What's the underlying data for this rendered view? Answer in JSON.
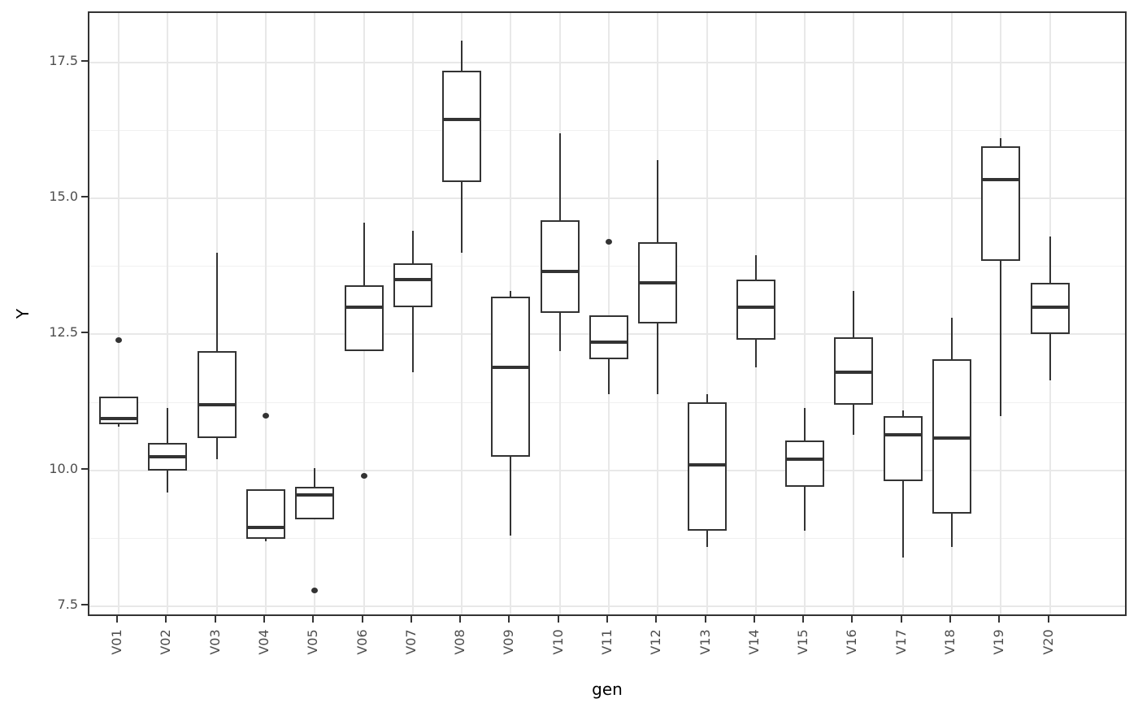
{
  "chart_data": {
    "type": "boxplot",
    "title": "",
    "xlabel": "gen",
    "ylabel": "Y",
    "categories": [
      "V01",
      "V02",
      "V03",
      "V04",
      "V05",
      "V06",
      "V07",
      "V08",
      "V09",
      "V10",
      "V11",
      "V12",
      "V13",
      "V14",
      "V15",
      "V16",
      "V17",
      "V18",
      "V19",
      "V20"
    ],
    "ylim": [
      7.3,
      18.4
    ],
    "yticks": [
      7.5,
      10.0,
      12.5,
      15.0,
      17.5
    ],
    "ytick_labels": [
      "7.5",
      "10.0",
      "12.5",
      "15.0",
      "17.5"
    ],
    "yticks_minor": [
      8.75,
      11.25,
      13.75,
      16.25
    ],
    "grid": "on",
    "legend": "none",
    "boxes": [
      {
        "gen": "V01",
        "low": 10.8,
        "q1": 10.85,
        "median": 10.95,
        "q3": 11.35,
        "high": 11.35,
        "outliers": [
          12.4
        ]
      },
      {
        "gen": "V02",
        "low": 9.6,
        "q1": 10.0,
        "median": 10.25,
        "q3": 10.5,
        "high": 11.15,
        "outliers": []
      },
      {
        "gen": "V03",
        "low": 10.2,
        "q1": 10.6,
        "median": 11.2,
        "q3": 12.2,
        "high": 14.0,
        "outliers": []
      },
      {
        "gen": "V04",
        "low": 8.7,
        "q1": 8.75,
        "median": 8.95,
        "q3": 9.65,
        "high": 9.65,
        "outliers": [
          11.0
        ]
      },
      {
        "gen": "V05",
        "low": 9.1,
        "q1": 9.1,
        "median": 9.55,
        "q3": 9.7,
        "high": 10.05,
        "outliers": [
          7.8
        ]
      },
      {
        "gen": "V06",
        "low": 12.2,
        "q1": 12.2,
        "median": 13.0,
        "q3": 13.4,
        "high": 14.55,
        "outliers": [
          9.9
        ]
      },
      {
        "gen": "V07",
        "low": 11.8,
        "q1": 13.0,
        "median": 13.5,
        "q3": 13.8,
        "high": 14.4,
        "outliers": []
      },
      {
        "gen": "V08",
        "low": 14.0,
        "q1": 15.3,
        "median": 16.45,
        "q3": 17.35,
        "high": 17.9,
        "outliers": []
      },
      {
        "gen": "V09",
        "low": 8.8,
        "q1": 10.25,
        "median": 11.9,
        "q3": 13.2,
        "high": 13.3,
        "outliers": []
      },
      {
        "gen": "V10",
        "low": 12.2,
        "q1": 12.9,
        "median": 13.65,
        "q3": 14.6,
        "high": 16.2,
        "outliers": []
      },
      {
        "gen": "V11",
        "low": 11.4,
        "q1": 12.05,
        "median": 12.35,
        "q3": 12.85,
        "high": 12.85,
        "outliers": [
          14.2
        ]
      },
      {
        "gen": "V12",
        "low": 11.4,
        "q1": 12.7,
        "median": 13.45,
        "q3": 14.2,
        "high": 15.7,
        "outliers": []
      },
      {
        "gen": "V13",
        "low": 8.6,
        "q1": 8.9,
        "median": 10.1,
        "q3": 11.25,
        "high": 11.4,
        "outliers": []
      },
      {
        "gen": "V14",
        "low": 11.9,
        "q1": 12.4,
        "median": 13.0,
        "q3": 13.5,
        "high": 13.95,
        "outliers": []
      },
      {
        "gen": "V15",
        "low": 8.9,
        "q1": 9.7,
        "median": 10.2,
        "q3": 10.55,
        "high": 11.15,
        "outliers": []
      },
      {
        "gen": "V16",
        "low": 10.65,
        "q1": 11.2,
        "median": 11.8,
        "q3": 12.45,
        "high": 13.3,
        "outliers": []
      },
      {
        "gen": "V17",
        "low": 8.4,
        "q1": 9.8,
        "median": 10.65,
        "q3": 11.0,
        "high": 11.1,
        "outliers": []
      },
      {
        "gen": "V18",
        "low": 8.6,
        "q1": 9.2,
        "median": 10.6,
        "q3": 12.05,
        "high": 12.8,
        "outliers": []
      },
      {
        "gen": "V19",
        "low": 11.0,
        "q1": 13.85,
        "median": 15.35,
        "q3": 15.95,
        "high": 16.1,
        "outliers": []
      },
      {
        "gen": "V20",
        "low": 11.65,
        "q1": 12.5,
        "median": 13.0,
        "q3": 13.45,
        "high": 14.3,
        "outliers": []
      }
    ]
  },
  "style": {
    "box_stroke": "#333333",
    "box_fill": "#ffffff",
    "grid_major": "#e8e8e8",
    "grid_minor": "#f0f0f0",
    "panel_border": "#333333",
    "tick_color": "#333333",
    "tick_label_color": "#4d4d4d",
    "axis_title_color": "#000000",
    "background": "#ffffff"
  }
}
